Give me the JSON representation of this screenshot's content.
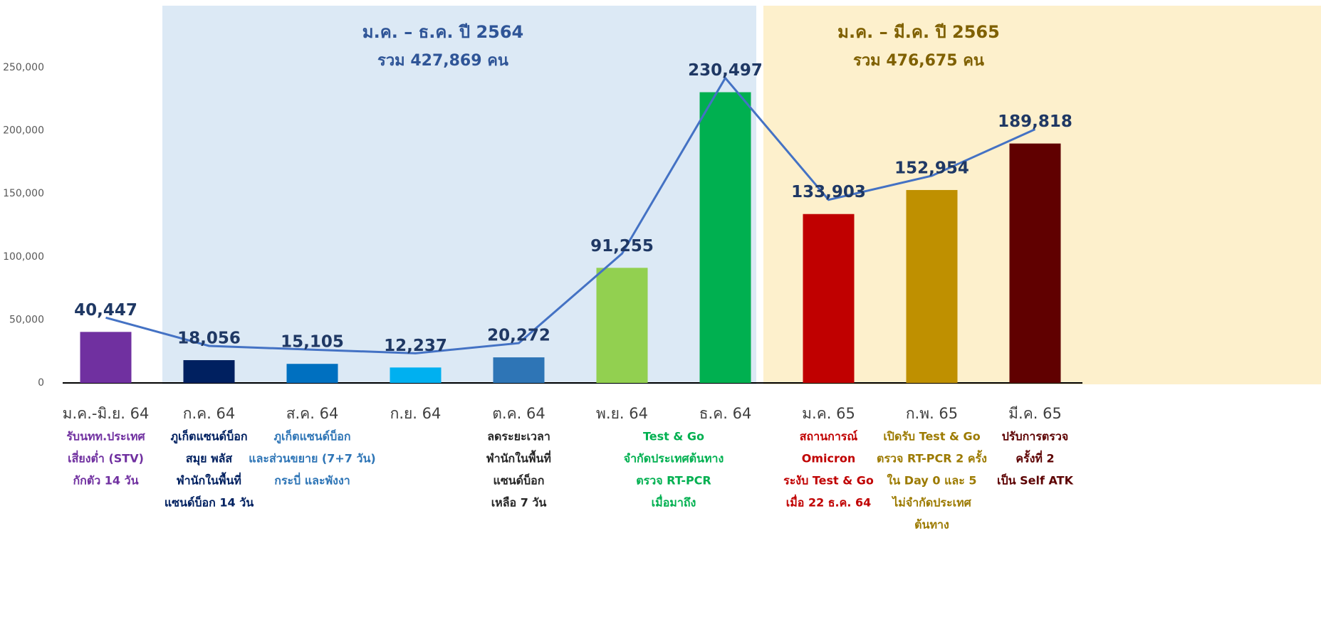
{
  "chart_data": {
    "type": "bar",
    "categories": [
      "ม.ค.-มิ.ย. 64",
      "ก.ค. 64",
      "ส.ค. 64",
      "ก.ย. 64",
      "ต.ค. 64",
      "พ.ย. 64",
      "ธ.ค. 64",
      "ม.ค. 65",
      "ก.พ. 65",
      "มี.ค. 65"
    ],
    "values": [
      40447,
      18056,
      15105,
      12237,
      20272,
      91255,
      230497,
      133903,
      152954,
      189818
    ],
    "value_labels": [
      "40,447",
      "18,056",
      "15,105",
      "12,237",
      "20,272",
      "91,255",
      "230,497",
      "133,903",
      "152,954",
      "189,818"
    ],
    "colors": [
      "#7030a0",
      "#002060",
      "#0070c0",
      "#00b0f0",
      "#2e75b6",
      "#92d050",
      "#00b050",
      "#c00000",
      "#bf9000",
      "#600000"
    ],
    "line_color": "#4472c4",
    "descriptions": [
      [
        "รับนทท.ประเทศ",
        "เสี่ยงต่ำ (STV)",
        "กักตัว 14 วัน"
      ],
      [
        "ภูเก็ตแซนด์บ็อก",
        "สมุย พลัส",
        "พำนักในพื้นที่",
        "แซนด์บ็อก 14 วัน"
      ],
      [
        "ภูเก็ตแซนด์บ็อก",
        "และส่วนขยาย (7+7 วัน)",
        "กระบี่ และพังงา"
      ],
      [],
      [
        "ลดระยะเวลา",
        "พำนักในพื้นที่",
        "แซนด์บ็อก",
        "เหลือ 7 วัน"
      ],
      [
        "Test & Go",
        "จำกัดประเทศต้นทาง",
        "ตรวจ RT-PCR",
        "เมื่อมาถึง"
      ],
      [],
      [
        "สถานการณ์",
        "Omicron",
        "ระงับ Test & Go",
        "เมื่อ 22 ธ.ค. 64"
      ],
      [
        "เปิดรับ Test & Go",
        "ตรวจ RT-PCR 2 ครั้ง",
        "ใน Day 0 และ 5",
        "ไม่จำกัดประเทศ",
        "ต้นทาง"
      ],
      [
        "ปรับการตรวจ",
        "ครั้งที่ 2",
        "เป็น Self ATK"
      ]
    ],
    "description_colors": [
      "#7030a0",
      "#002060",
      "#2e75b6",
      "#000000",
      "#262626",
      "#00b050",
      "#00b050",
      "#c00000",
      "#9c7a00",
      "#5c0000"
    ],
    "regions": [
      {
        "title": "ม.ค. – ธ.ค. ปี 2564",
        "subtitle": "รวม 427,869 คน",
        "color": "#dce9f5",
        "text_color": "#2f5597"
      },
      {
        "title": "ม.ค. – มี.ค. ปี 2565",
        "subtitle": "รวม 476,675 คน",
        "color": "#fdf0cc",
        "text_color": "#7f6000"
      }
    ],
    "ylim": [
      0,
      250000
    ],
    "yticks": [
      0,
      {
        "value": 50000,
        "label": "50,000"
      },
      {
        "value": 100000,
        "label": "100,000"
      },
      {
        "value": 150000,
        "label": "150,000"
      },
      {
        "value": 200000,
        "label": "200,000"
      },
      {
        "value": 250000,
        "label": "250,000"
      }
    ],
    "grid": false
  }
}
